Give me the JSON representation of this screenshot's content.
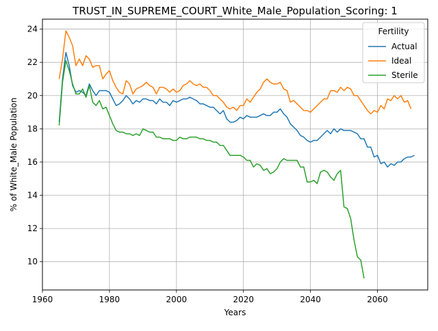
{
  "chart_data": {
    "type": "line",
    "title": "TRUST_IN_SUPREME_COURT_White_Male_Population_Scoring: 1",
    "xlabel": "Years",
    "ylabel": "% of White_Male Population",
    "xlim": [
      1960,
      2075
    ],
    "ylim": [
      8.3,
      24.6
    ],
    "xticks": [
      1960,
      1980,
      2000,
      2020,
      2040,
      2060
    ],
    "yticks": [
      10,
      12,
      14,
      16,
      18,
      20,
      22,
      24
    ],
    "grid": true,
    "legend": {
      "title": "Fertility",
      "placement": "top-right"
    },
    "series": [
      {
        "name": "Actual",
        "color": "#1f77b4",
        "points": [
          [
            1965,
            18.4
          ],
          [
            1966,
            21.0
          ],
          [
            1967,
            22.6
          ],
          [
            1968,
            21.8
          ],
          [
            1969,
            20.6
          ],
          [
            1970,
            20.2
          ],
          [
            1971,
            20.3
          ],
          [
            1972,
            20.2
          ],
          [
            1973,
            20.0
          ],
          [
            1974,
            20.7
          ],
          [
            1975,
            20.3
          ],
          [
            1976,
            20.0
          ],
          [
            1977,
            20.3
          ],
          [
            1978,
            20.3
          ],
          [
            1979,
            20.3
          ],
          [
            1980,
            20.2
          ],
          [
            1981,
            19.8
          ],
          [
            1982,
            19.4
          ],
          [
            1983,
            19.5
          ],
          [
            1984,
            19.7
          ],
          [
            1985,
            20.0
          ],
          [
            1986,
            19.8
          ],
          [
            1987,
            19.5
          ],
          [
            1988,
            19.7
          ],
          [
            1989,
            19.6
          ],
          [
            1990,
            19.8
          ],
          [
            1991,
            19.8
          ],
          [
            1992,
            19.7
          ],
          [
            1993,
            19.7
          ],
          [
            1994,
            19.5
          ],
          [
            1995,
            19.8
          ],
          [
            1996,
            19.6
          ],
          [
            1997,
            19.6
          ],
          [
            1998,
            19.4
          ],
          [
            1999,
            19.7
          ],
          [
            2000,
            19.6
          ],
          [
            2001,
            19.7
          ],
          [
            2002,
            19.8
          ],
          [
            2003,
            19.8
          ],
          [
            2004,
            19.9
          ],
          [
            2005,
            19.8
          ],
          [
            2006,
            19.7
          ],
          [
            2007,
            19.5
          ],
          [
            2008,
            19.5
          ],
          [
            2009,
            19.4
          ],
          [
            2010,
            19.3
          ],
          [
            2011,
            19.3
          ],
          [
            2012,
            19.1
          ],
          [
            2013,
            18.9
          ],
          [
            2014,
            19.1
          ],
          [
            2015,
            18.6
          ],
          [
            2016,
            18.4
          ],
          [
            2017,
            18.4
          ],
          [
            2018,
            18.5
          ],
          [
            2019,
            18.7
          ],
          [
            2020,
            18.6
          ],
          [
            2021,
            18.8
          ],
          [
            2022,
            18.7
          ],
          [
            2023,
            18.7
          ],
          [
            2024,
            18.7
          ],
          [
            2025,
            18.8
          ],
          [
            2026,
            18.9
          ],
          [
            2027,
            18.8
          ],
          [
            2028,
            18.8
          ],
          [
            2029,
            19.0
          ],
          [
            2030,
            19.0
          ],
          [
            2031,
            19.2
          ],
          [
            2032,
            18.9
          ],
          [
            2033,
            18.7
          ],
          [
            2034,
            18.3
          ],
          [
            2035,
            18.1
          ],
          [
            2036,
            17.9
          ],
          [
            2037,
            17.6
          ],
          [
            2038,
            17.5
          ],
          [
            2039,
            17.3
          ],
          [
            2040,
            17.2
          ],
          [
            2041,
            17.3
          ],
          [
            2042,
            17.3
          ],
          [
            2043,
            17.5
          ],
          [
            2044,
            17.7
          ],
          [
            2045,
            17.9
          ],
          [
            2046,
            17.7
          ],
          [
            2047,
            18.0
          ],
          [
            2048,
            17.8
          ],
          [
            2049,
            18.0
          ],
          [
            2050,
            17.9
          ],
          [
            2051,
            17.9
          ],
          [
            2052,
            17.9
          ],
          [
            2053,
            17.8
          ],
          [
            2054,
            17.7
          ],
          [
            2055,
            17.4
          ],
          [
            2056,
            17.4
          ],
          [
            2057,
            16.9
          ],
          [
            2058,
            16.9
          ],
          [
            2059,
            16.3
          ],
          [
            2060,
            16.4
          ],
          [
            2061,
            15.9
          ],
          [
            2062,
            16.0
          ],
          [
            2063,
            15.7
          ],
          [
            2064,
            15.9
          ],
          [
            2065,
            15.8
          ],
          [
            2066,
            16.0
          ],
          [
            2067,
            16.0
          ],
          [
            2068,
            16.2
          ],
          [
            2069,
            16.3
          ],
          [
            2070,
            16.3
          ],
          [
            2071,
            16.4
          ]
        ]
      },
      {
        "name": "Ideal",
        "color": "#ff7f0e",
        "points": [
          [
            1965,
            21.0
          ],
          [
            1966,
            22.2
          ],
          [
            1967,
            23.9
          ],
          [
            1968,
            23.5
          ],
          [
            1969,
            23.0
          ],
          [
            1970,
            21.8
          ],
          [
            1971,
            22.2
          ],
          [
            1972,
            21.8
          ],
          [
            1973,
            22.4
          ],
          [
            1974,
            22.2
          ],
          [
            1975,
            21.7
          ],
          [
            1976,
            21.8
          ],
          [
            1977,
            21.8
          ],
          [
            1978,
            21.0
          ],
          [
            1979,
            21.3
          ],
          [
            1980,
            21.5
          ],
          [
            1981,
            20.9
          ],
          [
            1982,
            20.5
          ],
          [
            1983,
            20.2
          ],
          [
            1984,
            20.1
          ],
          [
            1985,
            20.9
          ],
          [
            1986,
            20.7
          ],
          [
            1987,
            20.1
          ],
          [
            1988,
            20.4
          ],
          [
            1989,
            20.5
          ],
          [
            1990,
            20.6
          ],
          [
            1991,
            20.8
          ],
          [
            1992,
            20.6
          ],
          [
            1993,
            20.5
          ],
          [
            1994,
            20.1
          ],
          [
            1995,
            20.5
          ],
          [
            1996,
            20.5
          ],
          [
            1997,
            20.4
          ],
          [
            1998,
            20.2
          ],
          [
            1999,
            20.4
          ],
          [
            2000,
            20.2
          ],
          [
            2001,
            20.3
          ],
          [
            2002,
            20.6
          ],
          [
            2003,
            20.7
          ],
          [
            2004,
            20.9
          ],
          [
            2005,
            20.7
          ],
          [
            2006,
            20.6
          ],
          [
            2007,
            20.7
          ],
          [
            2008,
            20.5
          ],
          [
            2009,
            20.5
          ],
          [
            2010,
            20.3
          ],
          [
            2011,
            20.0
          ],
          [
            2012,
            20.0
          ],
          [
            2013,
            19.8
          ],
          [
            2014,
            19.6
          ],
          [
            2015,
            19.3
          ],
          [
            2016,
            19.2
          ],
          [
            2017,
            19.3
          ],
          [
            2018,
            19.1
          ],
          [
            2019,
            19.4
          ],
          [
            2020,
            19.4
          ],
          [
            2021,
            19.8
          ],
          [
            2022,
            19.6
          ],
          [
            2023,
            19.9
          ],
          [
            2024,
            20.2
          ],
          [
            2025,
            20.4
          ],
          [
            2026,
            20.8
          ],
          [
            2027,
            21.0
          ],
          [
            2028,
            20.8
          ],
          [
            2029,
            20.7
          ],
          [
            2030,
            20.7
          ],
          [
            2031,
            20.8
          ],
          [
            2032,
            20.4
          ],
          [
            2033,
            20.3
          ],
          [
            2034,
            19.6
          ],
          [
            2035,
            19.7
          ],
          [
            2036,
            19.5
          ],
          [
            2037,
            19.3
          ],
          [
            2038,
            19.1
          ],
          [
            2039,
            19.1
          ],
          [
            2040,
            19.0
          ],
          [
            2041,
            19.2
          ],
          [
            2042,
            19.4
          ],
          [
            2043,
            19.6
          ],
          [
            2044,
            19.8
          ],
          [
            2045,
            19.8
          ],
          [
            2046,
            20.3
          ],
          [
            2047,
            20.3
          ],
          [
            2048,
            20.2
          ],
          [
            2049,
            20.5
          ],
          [
            2050,
            20.3
          ],
          [
            2051,
            20.5
          ],
          [
            2052,
            20.4
          ],
          [
            2053,
            20.0
          ],
          [
            2054,
            20.0
          ],
          [
            2055,
            19.7
          ],
          [
            2056,
            19.4
          ],
          [
            2057,
            19.1
          ],
          [
            2058,
            18.9
          ],
          [
            2059,
            19.1
          ],
          [
            2060,
            19.0
          ],
          [
            2061,
            19.4
          ],
          [
            2062,
            19.2
          ],
          [
            2063,
            19.8
          ],
          [
            2064,
            19.7
          ],
          [
            2065,
            20.0
          ],
          [
            2066,
            19.8
          ],
          [
            2067,
            20.0
          ],
          [
            2068,
            19.6
          ],
          [
            2069,
            19.7
          ],
          [
            2070,
            19.2
          ]
        ]
      },
      {
        "name": "Sterile",
        "color": "#2ca02c",
        "points": [
          [
            1965,
            18.2
          ],
          [
            1966,
            20.8
          ],
          [
            1967,
            22.1
          ],
          [
            1968,
            21.5
          ],
          [
            1969,
            20.7
          ],
          [
            1970,
            20.1
          ],
          [
            1971,
            20.1
          ],
          [
            1972,
            20.4
          ],
          [
            1973,
            19.9
          ],
          [
            1974,
            20.6
          ],
          [
            1975,
            19.6
          ],
          [
            1976,
            19.4
          ],
          [
            1977,
            19.7
          ],
          [
            1978,
            19.2
          ],
          [
            1979,
            19.3
          ],
          [
            1980,
            18.8
          ],
          [
            1981,
            18.3
          ],
          [
            1982,
            17.9
          ],
          [
            1983,
            17.8
          ],
          [
            1984,
            17.8
          ],
          [
            1985,
            17.7
          ],
          [
            1986,
            17.7
          ],
          [
            1987,
            17.6
          ],
          [
            1988,
            17.7
          ],
          [
            1989,
            17.6
          ],
          [
            1990,
            18.0
          ],
          [
            1991,
            17.9
          ],
          [
            1992,
            17.8
          ],
          [
            1993,
            17.8
          ],
          [
            1994,
            17.5
          ],
          [
            1995,
            17.5
          ],
          [
            1996,
            17.4
          ],
          [
            1997,
            17.4
          ],
          [
            1998,
            17.4
          ],
          [
            1999,
            17.3
          ],
          [
            2000,
            17.3
          ],
          [
            2001,
            17.5
          ],
          [
            2002,
            17.4
          ],
          [
            2003,
            17.4
          ],
          [
            2004,
            17.5
          ],
          [
            2005,
            17.5
          ],
          [
            2006,
            17.5
          ],
          [
            2007,
            17.4
          ],
          [
            2008,
            17.4
          ],
          [
            2009,
            17.3
          ],
          [
            2010,
            17.3
          ],
          [
            2011,
            17.2
          ],
          [
            2012,
            17.2
          ],
          [
            2013,
            17.0
          ],
          [
            2014,
            17.0
          ],
          [
            2015,
            16.7
          ],
          [
            2016,
            16.4
          ],
          [
            2017,
            16.4
          ],
          [
            2018,
            16.4
          ],
          [
            2019,
            16.4
          ],
          [
            2020,
            16.3
          ],
          [
            2021,
            16.1
          ],
          [
            2022,
            16.1
          ],
          [
            2023,
            15.7
          ],
          [
            2024,
            15.9
          ],
          [
            2025,
            15.8
          ],
          [
            2026,
            15.5
          ],
          [
            2027,
            15.6
          ],
          [
            2028,
            15.3
          ],
          [
            2029,
            15.4
          ],
          [
            2030,
            15.6
          ],
          [
            2031,
            16.0
          ],
          [
            2032,
            16.2
          ],
          [
            2033,
            16.1
          ],
          [
            2034,
            16.1
          ],
          [
            2035,
            16.1
          ],
          [
            2036,
            16.1
          ],
          [
            2037,
            15.7
          ],
          [
            2038,
            15.7
          ],
          [
            2039,
            14.8
          ],
          [
            2040,
            14.8
          ],
          [
            2041,
            14.9
          ],
          [
            2042,
            14.7
          ],
          [
            2043,
            15.4
          ],
          [
            2044,
            15.5
          ],
          [
            2045,
            15.4
          ],
          [
            2046,
            15.1
          ],
          [
            2047,
            14.9
          ],
          [
            2048,
            15.3
          ],
          [
            2049,
            15.5
          ],
          [
            2050,
            13.3
          ],
          [
            2051,
            13.2
          ],
          [
            2052,
            12.6
          ],
          [
            2053,
            11.3
          ],
          [
            2054,
            10.3
          ],
          [
            2055,
            10.1
          ],
          [
            2056,
            9.0
          ]
        ]
      }
    ]
  }
}
